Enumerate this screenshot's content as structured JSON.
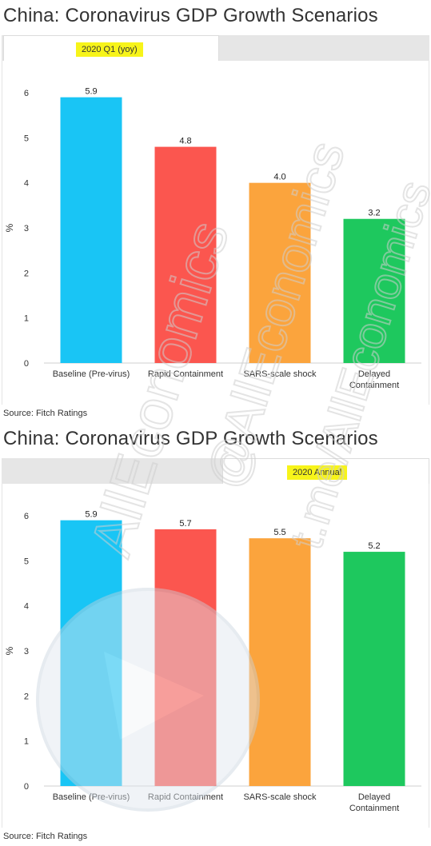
{
  "watermark": {
    "lines": [
      "AllEconomics",
      "@AllEconomics",
      "t.me/AllEconomics"
    ],
    "color": "#d9d9d9"
  },
  "chart_data": [
    {
      "type": "bar",
      "title": "China: Coronavirus GDP Growth Scenarios",
      "tab_label": "2020 Q1 (yoy)",
      "ylabel": "%",
      "ylim": [
        0,
        6
      ],
      "yticks": [
        0,
        1,
        2,
        3,
        4,
        5,
        6
      ],
      "grid": false,
      "categories": [
        "Baseline (Pre-virus)",
        "Rapid Containment",
        "SARS-scale shock",
        "Delayed Containment"
      ],
      "values": [
        5.9,
        4.8,
        4.0,
        3.2
      ],
      "value_labels": [
        "5.9",
        "4.8",
        "4.0",
        "3.2"
      ],
      "colors": [
        "#19c5f5",
        "#fb564f",
        "#fba43d",
        "#1ec85e"
      ],
      "source": "Source: Fitch Ratings"
    },
    {
      "type": "bar",
      "title": "China: Coronavirus GDP Growth Scenarios",
      "tab_label": "2020 Annual",
      "ylabel": "%",
      "ylim": [
        0,
        6
      ],
      "yticks": [
        0,
        1,
        2,
        3,
        4,
        5,
        6
      ],
      "grid": false,
      "categories": [
        "Baseline (Pre-virus)",
        "Rapid Containment",
        "SARS-scale shock",
        "Delayed Containment"
      ],
      "values": [
        5.9,
        5.7,
        5.5,
        5.2
      ],
      "value_labels": [
        "5.9",
        "5.7",
        "5.5",
        "5.2"
      ],
      "colors": [
        "#19c5f5",
        "#fb564f",
        "#fba43d",
        "#1ec85e"
      ],
      "source": "Source: Fitch Ratings"
    }
  ]
}
